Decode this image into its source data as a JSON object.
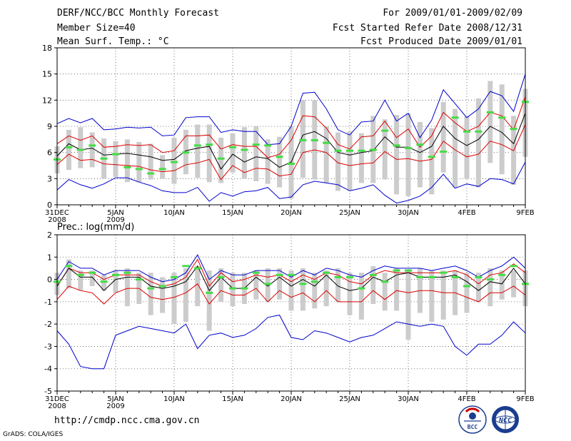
{
  "header": {
    "title": "DERF/NCC/BCC Monthly Forecast",
    "member_size": "Member Size=40",
    "variable": "Mean Surf. Temp.: °C",
    "period": "For 2009/01/01-2009/02/09",
    "started": "Fcst Started Refer Date 2008/12/31",
    "produced": "Fcst Produced Date 2009/01/01"
  },
  "footer": {
    "url": "http://cmdp.ncc.cma.gov.cn",
    "credit": "GrADS: COLA/IGES",
    "logo_left_text": "BCC",
    "logo_right_text": "NCC"
  },
  "colors": {
    "envelope": "#0000cc",
    "spread": "#dd0000",
    "mean": "#000000",
    "box": "#cccccc",
    "member_mark": "#44dd44"
  },
  "chart_data": [
    {
      "type": "line",
      "title": "Mean Surf. Temp.: °C",
      "ylim": [
        0,
        18
      ],
      "yticks": [
        0,
        3,
        6,
        9,
        12,
        15,
        18
      ],
      "xticks": [
        {
          "day": 0,
          "label": "31DEC",
          "sub": "2008"
        },
        {
          "day": 5,
          "label": "5JAN",
          "sub": "2009"
        },
        {
          "day": 10,
          "label": "10JAN",
          "sub": ""
        },
        {
          "day": 15,
          "label": "15JAN",
          "sub": ""
        },
        {
          "day": 20,
          "label": "20JAN",
          "sub": ""
        },
        {
          "day": 25,
          "label": "25JAN",
          "sub": ""
        },
        {
          "day": 30,
          "label": "30JAN",
          "sub": ""
        },
        {
          "day": 35,
          "label": "4FEB",
          "sub": ""
        },
        {
          "day": 40,
          "label": "9FEB",
          "sub": ""
        }
      ],
      "series": [
        {
          "name": "max",
          "color": "#0000cc",
          "values": [
            9.3,
            9.9,
            9.4,
            9.9,
            8.6,
            8.7,
            8.9,
            8.8,
            8.9,
            7.9,
            8.0,
            10.0,
            10.1,
            10.1,
            8.3,
            8.6,
            8.4,
            8.4,
            6.9,
            7.0,
            9.0,
            12.8,
            12.9,
            11.0,
            8.6,
            8.0,
            9.5,
            9.6,
            12.0,
            9.6,
            10.5,
            7.7,
            9.7,
            13.2,
            11.6,
            10.0,
            11.0,
            13.0,
            12.5,
            10.7,
            15.0
          ]
        },
        {
          "name": "upper",
          "color": "#dd0000",
          "values": [
            7.0,
            7.9,
            7.4,
            7.9,
            6.6,
            6.7,
            6.9,
            6.8,
            6.9,
            6.0,
            6.2,
            7.9,
            7.9,
            8.0,
            6.4,
            6.9,
            6.7,
            6.7,
            5.4,
            5.8,
            7.4,
            10.2,
            10.1,
            8.8,
            6.9,
            6.4,
            7.8,
            7.9,
            9.6,
            7.7,
            8.7,
            6.6,
            7.9,
            10.6,
            9.4,
            8.4,
            9.0,
            10.6,
            10.2,
            8.6,
            12.4
          ]
        },
        {
          "name": "mean",
          "color": "#000000",
          "values": [
            5.6,
            7.0,
            6.3,
            6.5,
            5.7,
            5.8,
            5.9,
            5.7,
            5.5,
            5.1,
            5.2,
            6.2,
            6.5,
            6.7,
            4.1,
            5.8,
            4.9,
            5.5,
            5.3,
            4.3,
            4.9,
            8.0,
            8.4,
            7.6,
            6.0,
            5.7,
            6.0,
            6.2,
            7.8,
            6.6,
            6.6,
            6.0,
            6.7,
            9.0,
            7.6,
            6.8,
            7.5,
            9.0,
            8.3,
            7.0,
            10.5
          ]
        },
        {
          "name": "lower",
          "color": "#dd0000",
          "values": [
            4.6,
            5.8,
            5.1,
            5.2,
            4.7,
            4.6,
            4.5,
            4.4,
            4.0,
            3.8,
            3.9,
            4.6,
            4.8,
            5.2,
            2.9,
            4.5,
            3.7,
            4.2,
            4.1,
            3.3,
            3.5,
            6.0,
            6.3,
            6.0,
            4.8,
            4.5,
            4.7,
            4.8,
            6.1,
            5.2,
            5.3,
            5.0,
            5.2,
            7.3,
            6.3,
            5.5,
            5.8,
            7.3,
            6.9,
            6.2,
            9.2
          ]
        },
        {
          "name": "min",
          "color": "#0000cc",
          "values": [
            1.7,
            2.9,
            2.3,
            1.9,
            2.4,
            3.1,
            3.1,
            2.6,
            2.2,
            1.6,
            1.4,
            1.4,
            2.0,
            0.4,
            1.4,
            1.0,
            1.5,
            1.6,
            2.0,
            0.7,
            0.9,
            2.3,
            2.7,
            2.5,
            2.3,
            1.6,
            1.9,
            2.3,
            1.1,
            0.2,
            0.5,
            1.0,
            2.0,
            3.5,
            1.9,
            2.4,
            2.1,
            3.0,
            2.9,
            2.4,
            4.9
          ]
        }
      ],
      "boxes": {
        "low": [
          3.6,
          4.0,
          4.2,
          4.3,
          3.0,
          3.2,
          2.6,
          2.6,
          2.9,
          3.0,
          2.4,
          3.5,
          3.1,
          2.6,
          2.5,
          3.7,
          3.0,
          2.7,
          2.4,
          2.0,
          0.7,
          3.1,
          2.9,
          2.5,
          1.6,
          1.6,
          2.5,
          2.5,
          2.9,
          1.2,
          1.0,
          2.0,
          1.2,
          3.7,
          2.0,
          3.0,
          2.0,
          4.8,
          3.5,
          2.3,
          5.5
        ],
        "high": [
          6.7,
          8.6,
          8.9,
          8.3,
          7.6,
          7.3,
          7.5,
          7.2,
          7.0,
          5.7,
          7.7,
          8.6,
          9.2,
          9.2,
          7.7,
          8.2,
          8.9,
          9.0,
          7.5,
          7.8,
          9.0,
          12.0,
          12.0,
          9.0,
          8.3,
          8.4,
          8.2,
          10.2,
          9.8,
          10.3,
          10.5,
          9.5,
          8.8,
          11.8,
          11.0,
          10.2,
          12.2,
          14.2,
          13.8,
          10.2,
          13.3
        ],
        "mark": [
          5.2,
          6.6,
          6.3,
          6.8,
          5.3,
          5.8,
          4.3,
          4.1,
          3.6,
          4.1,
          4.9,
          6.0,
          6.8,
          6.9,
          5.3,
          6.6,
          6.3,
          6.9,
          6.8,
          5.5,
          4.7,
          7.4,
          7.4,
          7.1,
          6.2,
          6.2,
          6.2,
          6.3,
          8.5,
          6.8,
          6.5,
          6.9,
          5.5,
          6.1,
          10.0,
          8.4,
          8.4,
          10.6,
          10.0,
          8.7,
          11.8
        ]
      }
    },
    {
      "type": "line",
      "title": "Prec.: log(mm/d)",
      "ylim": [
        -5,
        2
      ],
      "yticks": [
        -5,
        -4,
        -3,
        -2,
        -1,
        0,
        1,
        2
      ],
      "xticks": [
        {
          "day": 0,
          "label": "31DEC",
          "sub": "2008"
        },
        {
          "day": 5,
          "label": "5JAN",
          "sub": "2009"
        },
        {
          "day": 10,
          "label": "10JAN",
          "sub": ""
        },
        {
          "day": 15,
          "label": "15JAN",
          "sub": ""
        },
        {
          "day": 20,
          "label": "20JAN",
          "sub": ""
        },
        {
          "day": 25,
          "label": "25JAN",
          "sub": ""
        },
        {
          "day": 30,
          "label": "30JAN",
          "sub": ""
        },
        {
          "day": 35,
          "label": "4FEB",
          "sub": ""
        },
        {
          "day": 40,
          "label": "9FEB",
          "sub": ""
        }
      ],
      "series": [
        {
          "name": "max",
          "color": "#0000cc",
          "values": [
            0.0,
            0.8,
            0.5,
            0.5,
            0.2,
            0.4,
            0.4,
            0.4,
            0.1,
            -0.1,
            0.0,
            0.3,
            1.1,
            0.0,
            0.4,
            0.2,
            0.2,
            0.4,
            0.4,
            0.4,
            0.1,
            0.4,
            0.2,
            0.5,
            0.4,
            0.2,
            0.1,
            0.4,
            0.6,
            0.5,
            0.5,
            0.5,
            0.4,
            0.5,
            0.6,
            0.4,
            0.1,
            0.4,
            0.6,
            1.0,
            0.5
          ]
        },
        {
          "name": "upper",
          "color": "#dd0000",
          "values": [
            -0.3,
            0.5,
            0.3,
            0.3,
            0.0,
            0.2,
            0.2,
            0.2,
            -0.1,
            -0.3,
            -0.2,
            0.1,
            0.9,
            -0.3,
            0.3,
            -0.1,
            0.0,
            0.2,
            0.1,
            0.2,
            -0.1,
            0.2,
            0.0,
            0.3,
            0.2,
            -0.1,
            -0.2,
            0.2,
            0.4,
            0.3,
            0.3,
            0.3,
            0.3,
            0.3,
            0.4,
            0.2,
            -0.2,
            0.2,
            0.3,
            0.7,
            0.3
          ]
        },
        {
          "name": "mean",
          "color": "#000000",
          "values": [
            -0.3,
            0.5,
            0.1,
            0.1,
            -0.5,
            0.0,
            0.1,
            0.1,
            -0.3,
            -0.4,
            -0.3,
            -0.1,
            0.6,
            -0.5,
            0.1,
            -0.4,
            -0.4,
            0.1,
            -0.3,
            0.1,
            -0.3,
            0.0,
            -0.3,
            0.2,
            -0.3,
            -0.5,
            -0.4,
            0.1,
            -0.1,
            0.2,
            0.3,
            0.1,
            0.1,
            0.1,
            0.2,
            -0.1,
            -0.5,
            -0.1,
            -0.2,
            0.5,
            -0.2
          ]
        },
        {
          "name": "lower",
          "color": "#dd0000",
          "values": [
            -0.9,
            -0.3,
            -0.5,
            -0.6,
            -1.1,
            -0.6,
            -0.4,
            -0.4,
            -0.8,
            -0.9,
            -0.8,
            -0.6,
            -0.2,
            -1.1,
            -0.5,
            -0.7,
            -0.7,
            -0.4,
            -1.0,
            -0.5,
            -0.8,
            -0.6,
            -1.0,
            -0.5,
            -1.0,
            -1.0,
            -1.0,
            -0.5,
            -0.9,
            -0.5,
            -0.6,
            -0.5,
            -0.5,
            -0.6,
            -0.6,
            -0.8,
            -1.0,
            -0.6,
            -0.6,
            -0.3,
            -0.7
          ]
        },
        {
          "name": "min",
          "color": "#0000cc",
          "values": [
            -2.3,
            -2.9,
            -3.9,
            -4.0,
            -4.0,
            -2.5,
            -2.3,
            -2.1,
            -2.2,
            -2.3,
            -2.4,
            -2.0,
            -3.1,
            -2.5,
            -2.4,
            -2.6,
            -2.5,
            -2.2,
            -1.7,
            -1.6,
            -2.6,
            -2.7,
            -2.3,
            -2.4,
            -2.6,
            -2.8,
            -2.6,
            -2.5,
            -2.2,
            -1.9,
            -2.0,
            -2.1,
            -2.0,
            -2.1,
            -3.0,
            -3.4,
            -2.9,
            -2.9,
            -2.5,
            -1.9,
            -2.4
          ]
        }
      ],
      "boxes": {
        "low": [
          -0.7,
          -0.4,
          -0.5,
          -0.3,
          -0.5,
          -0.6,
          -1.2,
          -1.1,
          -1.6,
          -1.5,
          -2.0,
          -1.9,
          -1.2,
          -2.3,
          -1.0,
          -1.2,
          -1.1,
          -0.9,
          -1.0,
          -0.9,
          -1.4,
          -1.4,
          -1.3,
          -1.2,
          -1.0,
          -1.6,
          -1.8,
          -1.1,
          -1.4,
          -1.4,
          -2.7,
          -1.5,
          -1.9,
          -1.8,
          -1.6,
          -1.5,
          -1.0,
          -1.2,
          -0.9,
          -0.8,
          -1.2
        ],
        "high": [
          0.3,
          0.9,
          0.4,
          0.4,
          0.2,
          0.4,
          0.5,
          0.3,
          0.3,
          0.1,
          0.3,
          0.5,
          0.6,
          0.4,
          0.5,
          0.3,
          0.3,
          0.4,
          0.5,
          0.5,
          0.4,
          0.5,
          0.3,
          0.4,
          0.5,
          0.3,
          0.3,
          0.6,
          0.3,
          0.5,
          0.4,
          0.5,
          0.4,
          0.4,
          0.4,
          0.3,
          0.3,
          0.5,
          0.4,
          0.4,
          0.4
        ],
        "mark": [
          -0.1,
          0.6,
          0.2,
          0.3,
          -0.1,
          0.2,
          0.3,
          0.0,
          -0.4,
          -0.3,
          0.1,
          0.6,
          0.5,
          -0.6,
          0.1,
          -0.4,
          -0.4,
          0.3,
          -0.2,
          0.2,
          0.2,
          -0.2,
          -0.1,
          0.3,
          0.1,
          0.1,
          -0.4,
          0.2,
          -0.1,
          0.4,
          0.4,
          0.1,
          0.1,
          0.3,
          0.1,
          -0.3,
          0.1,
          0.0,
          0.2,
          0.6,
          -0.2
        ]
      }
    }
  ]
}
